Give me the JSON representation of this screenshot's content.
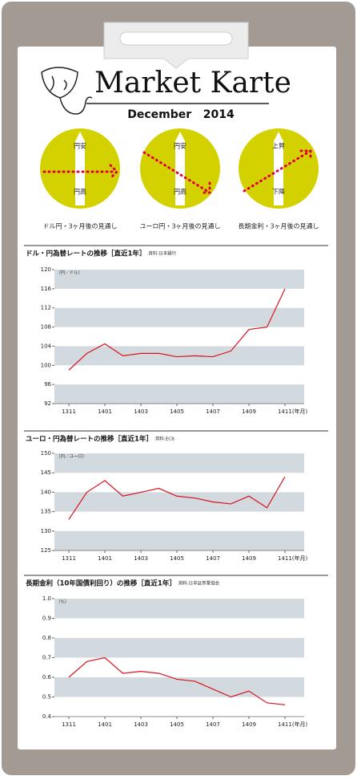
{
  "header": {
    "title": "Market Karte",
    "date": "December   2014"
  },
  "outlooks": [
    {
      "top": "円安",
      "bottom": "円高",
      "caption": "ドル円・3ヶ月後の見通し"
    },
    {
      "top": "円安",
      "bottom": "円高",
      "caption": "ユーロ円・3ヶ月後の見通し"
    },
    {
      "top": "上昇",
      "bottom": "下降",
      "caption": "長期金利・3ヶ月後の見通し"
    }
  ],
  "chart_data": [
    {
      "type": "line",
      "title": "ドル・円為替レートの推移［直近1年］",
      "source": "資料:日本銀行",
      "y_unit": "（円／ドル）",
      "x": [
        "1311",
        "1312",
        "1401",
        "1402",
        "1403",
        "1404",
        "1405",
        "1406",
        "1407",
        "1408",
        "1409",
        "1410",
        "1411"
      ],
      "values": [
        99,
        102.5,
        104.5,
        102,
        102.5,
        102.5,
        101.8,
        102,
        101.8,
        103,
        107.5,
        108,
        116
      ],
      "color": "#d8141e",
      "ylim": [
        92,
        120
      ],
      "yticks": [
        92,
        96,
        100,
        104,
        108,
        112,
        116,
        120
      ],
      "xticks": [
        "1311",
        "1401",
        "1403",
        "1405",
        "1407",
        "1409",
        {
          "value": "1411",
          "label": "1411(年月)"
        }
      ],
      "grid_bands": true
    },
    {
      "type": "line",
      "title": "ユーロ・円為替レートの推移［直近1年］",
      "source": "資料:ECB",
      "y_unit": "（円／ユーロ）",
      "x": [
        "1311",
        "1312",
        "1401",
        "1402",
        "1403",
        "1404",
        "1405",
        "1406",
        "1407",
        "1408",
        "1409",
        "1410",
        "1411"
      ],
      "values": [
        133,
        140,
        143,
        139,
        140,
        141,
        139,
        138.5,
        137.5,
        137,
        139,
        136,
        144
      ],
      "color": "#d8141e",
      "ylim": [
        125,
        150
      ],
      "yticks": [
        125,
        130,
        135,
        140,
        145,
        150
      ],
      "xticks": [
        "1311",
        "1401",
        "1403",
        "1405",
        "1407",
        "1409",
        {
          "value": "1411",
          "label": "1411(年月)"
        }
      ],
      "grid_bands": true
    },
    {
      "type": "line",
      "title": "長期金利（10年国債利回り）の推移［直近1年］",
      "source": "資料:日本証券業協会",
      "y_unit": "（%）",
      "x": [
        "1311",
        "1312",
        "1401",
        "1402",
        "1403",
        "1404",
        "1405",
        "1406",
        "1407",
        "1408",
        "1409",
        "1410",
        "1411"
      ],
      "values": [
        0.6,
        0.68,
        0.7,
        0.62,
        0.63,
        0.62,
        0.59,
        0.58,
        0.54,
        0.5,
        0.53,
        0.47,
        0.46
      ],
      "color": "#d8141e",
      "ylim": [
        0.4,
        1
      ],
      "yticks": [
        0.4,
        0.5,
        0.6,
        0.7,
        0.8,
        0.9,
        {
          "value": 1,
          "label": "1.0"
        }
      ],
      "xticks": [
        "1311",
        "1401",
        "1403",
        "1405",
        "1407",
        "1409",
        {
          "value": "1411",
          "label": "1411(年月)"
        }
      ],
      "grid_bands": true
    }
  ]
}
